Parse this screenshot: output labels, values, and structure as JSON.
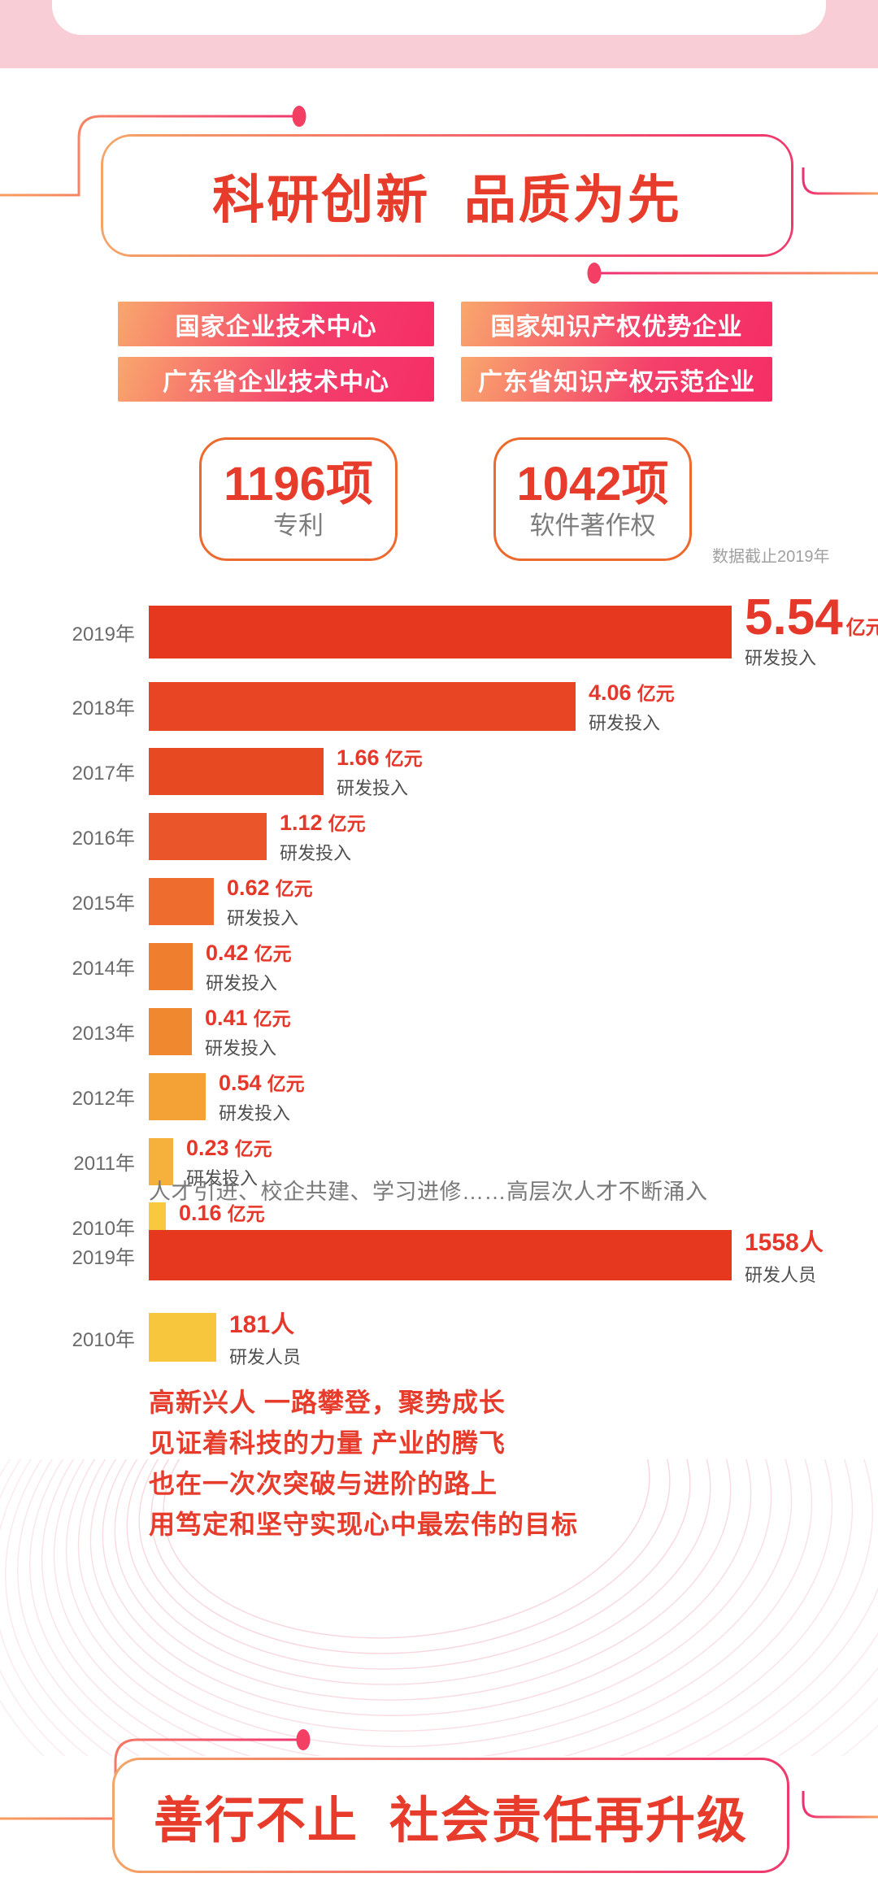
{
  "sections": {
    "research": {
      "title": "科研创新  品质为先"
    },
    "charity": {
      "title": "善行不止  社会责任再升级"
    }
  },
  "badges": [
    {
      "label": "国家企业技术中心"
    },
    {
      "label": "国家知识产权优势企业"
    },
    {
      "label": "广东省企业技术中心"
    },
    {
      "label": "广东省知识产权示范企业"
    }
  ],
  "stats": [
    {
      "value": "1196项",
      "label": "专利"
    },
    {
      "value": "1042项",
      "label": "软件著作权"
    }
  ],
  "chart_data": [
    {
      "type": "bar",
      "orientation": "horizontal",
      "categories": [
        "2019年",
        "2018年",
        "2017年",
        "2016年",
        "2015年",
        "2014年",
        "2013年",
        "2012年",
        "2011年",
        "2010年"
      ],
      "values": [
        5.54,
        4.06,
        1.66,
        1.12,
        0.62,
        0.42,
        0.41,
        0.54,
        0.23,
        0.16
      ],
      "unit": "亿元",
      "value_sublabel": "研发投入",
      "note": "数据截止2019年",
      "xlim": [
        0,
        5.54
      ],
      "grid": false,
      "bar_colors": [
        "#e6381f",
        "#e74524",
        "#e74a23",
        "#ea552a",
        "#ee6c2d",
        "#ef7e2f",
        "#f0882f",
        "#f4a236",
        "#f5b13c",
        "#f8c83e"
      ]
    },
    {
      "type": "bar",
      "orientation": "horizontal",
      "intro": "人才引进、校企共建、学习进修……高层次人才不断涌入",
      "categories": [
        "2019年",
        "2010年"
      ],
      "values": [
        1558,
        181
      ],
      "unit": "人",
      "value_sublabel": "研发人员",
      "xlim": [
        0,
        1558
      ],
      "grid": false,
      "bar_colors": [
        "#e6381f",
        "#f8c63c"
      ]
    }
  ],
  "paragraph": {
    "lines": [
      "高新兴人 一路攀登，聚势成长",
      "见证着科技的力量 产业的腾飞",
      "也在一次次突破与进阶的路上",
      "用笃定和坚守实现心中最宏伟的目标"
    ],
    "color": "#e73c2b"
  },
  "colors": {
    "accent_red": "#e73c2b",
    "pink_band": "#f8cdd5",
    "banner_border_gradient": [
      "#f4a566",
      "#ef3a6e"
    ],
    "badge_gradient": [
      "#f9a76d",
      "#f52e66"
    ],
    "stat_border": "#ec6a2e",
    "line_gradient": [
      "#f7a05e",
      "#ee2f74"
    ],
    "dot_color": "#f23f63",
    "wave_color": "#f2bac4"
  }
}
